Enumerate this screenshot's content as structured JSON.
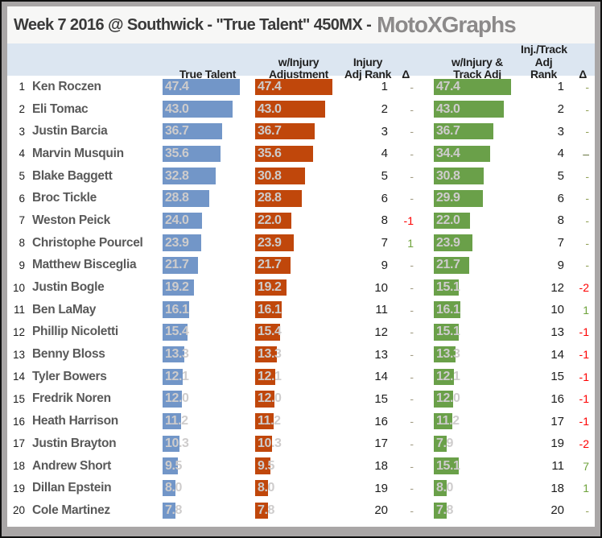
{
  "title": {
    "event": "Week 7 2016 @ Southwick - \"True Talent\" 450MX  -",
    "brand": "MotoXGraphs"
  },
  "header": {
    "true_talent": "True Talent",
    "injury_adj_line1": "w/Injury",
    "injury_adj_line2": "Adjustment",
    "injury_rank_line1": "Injury",
    "injury_rank_line2": "Adj Rank",
    "delta1": "Δ",
    "track_adj_line1": "w/Injury &",
    "track_adj_line2": "Track Adj",
    "track_rank_line1": "Inj./Track",
    "track_rank_line2": "Adj Rank",
    "delta2": "Δ"
  },
  "colors": {
    "bar_blue": "#7296c8",
    "bar_orange": "#c0470b",
    "bar_green": "#6aa049",
    "bar_label": "#cecccc",
    "name_text": "#595959",
    "header_bg": "#dce6f1",
    "delta_negative": "#fe0000",
    "delta_positive": "#6fa33c",
    "brand_gray": "#8c8a8a"
  },
  "chart_data": {
    "type": "bar",
    "title": "Week 7 2016 @ Southwick - \"True Talent\" 450MX",
    "legend_position": "top",
    "grid": false,
    "xlim": [
      0,
      47.4
    ],
    "ranks": [
      1,
      2,
      3,
      4,
      5,
      6,
      7,
      8,
      9,
      10,
      11,
      12,
      13,
      14,
      15,
      16,
      17,
      18,
      19,
      20
    ],
    "categories": [
      "Ken Roczen",
      "Eli Tomac",
      "Justin Barcia",
      "Marvin Musquin",
      "Blake Baggett",
      "Broc Tickle",
      "Weston Peick",
      "Christophe Pourcel",
      "Matthew Bisceglia",
      "Justin Bogle",
      "Ben LaMay",
      "Phillip Nicoletti",
      "Benny Bloss",
      "Tyler Bowers",
      "Fredrik Noren",
      "Heath Harrison",
      "Justin Brayton",
      "Andrew Short",
      "Dillan Epstein",
      "Cole Martinez"
    ],
    "series": [
      {
        "name": "True Talent",
        "values": [
          "47.4",
          "43.0",
          "36.7",
          "35.6",
          "32.8",
          "28.8",
          "24.0",
          "23.9",
          "21.7",
          "19.2",
          "16.1",
          "15.4",
          "13.3",
          "12.1",
          "12.0",
          "11.2",
          "10.3",
          "9.5",
          "8.0",
          "7.8"
        ]
      },
      {
        "name": "w/Injury Adjustment",
        "values": [
          "47.4",
          "43.0",
          "36.7",
          "35.6",
          "30.8",
          "28.8",
          "22.0",
          "23.9",
          "21.7",
          "19.2",
          "16.1",
          "15.4",
          "13.3",
          "12.1",
          "12.0",
          "11.2",
          "10.3",
          "9.5",
          "8.0",
          "7.8"
        ]
      },
      {
        "name": "w/Injury & Track Adj",
        "values": [
          "47.4",
          "43.0",
          "36.7",
          "34.4",
          "30.8",
          "29.9",
          "22.0",
          "23.9",
          "21.7",
          "15.1",
          "16.1",
          "15.1",
          "13.3",
          "12.1",
          "12.0",
          "11.2",
          "7.9",
          "15.1",
          "8.0",
          "7.8"
        ]
      }
    ],
    "injury_adj_rank": [
      1,
      2,
      3,
      4,
      5,
      6,
      8,
      7,
      9,
      10,
      11,
      12,
      13,
      14,
      15,
      16,
      17,
      18,
      19,
      20
    ],
    "injury_delta": [
      "-",
      "-",
      "-",
      "-",
      "-",
      "-",
      "-1",
      "1",
      "-",
      "-",
      "-",
      "-",
      "-",
      "-",
      "-",
      "-",
      "-",
      "-",
      "-",
      "-"
    ],
    "track_adj_rank": [
      1,
      2,
      3,
      4,
      5,
      6,
      8,
      7,
      9,
      12,
      10,
      13,
      14,
      15,
      16,
      17,
      19,
      11,
      18,
      20
    ],
    "track_delta": [
      "-",
      "-",
      "-",
      "–",
      "-",
      "-",
      "-",
      "-",
      "-",
      "-2",
      "1",
      "-1",
      "-1",
      "-1",
      "-1",
      "-1",
      "-2",
      "7",
      "1",
      "-"
    ]
  }
}
